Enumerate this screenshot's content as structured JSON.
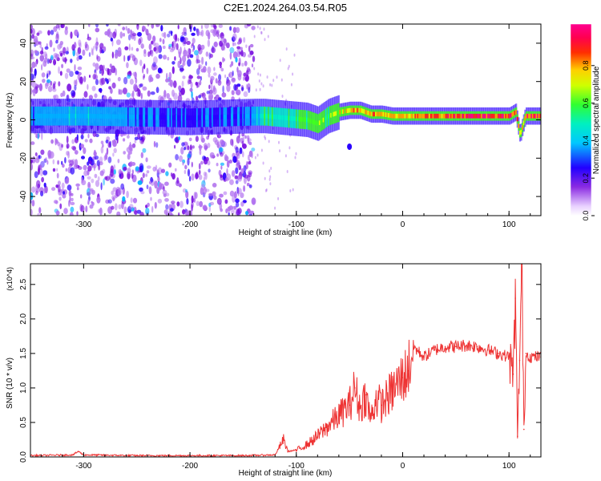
{
  "title": "C2E1.2024.264.03.54.R05",
  "colorbar": {
    "label": "Normalized spectral amplitude",
    "ticks": [
      "0.0",
      "0.2",
      "0.4",
      "0.6",
      "0.8"
    ]
  },
  "chart_data": [
    {
      "type": "heatmap",
      "xlabel": "Height of straight line (km)",
      "ylabel": "Frequency (Hz)",
      "xlim": [
        -350,
        130
      ],
      "ylim": [
        -50,
        50
      ],
      "xticks": [
        "-300",
        "-200",
        "-100",
        "0",
        "100"
      ],
      "yticks": [
        "40",
        "20",
        "0",
        "-20",
        "-40"
      ],
      "zlim": [
        0,
        1
      ],
      "colormap": "rainbow (violet → blue → cyan → green → yellow → red → magenta)",
      "noise_region_x": [
        -350,
        -140
      ],
      "ridge": {
        "description": "Signal ridge near 0–5 Hz, strongest for heights above -60 km",
        "x": [
          -350,
          -300,
          -250,
          -200,
          -140,
          -130,
          -110,
          -90,
          -80,
          -70,
          -60,
          -50,
          -40,
          -30,
          -20,
          -10,
          0,
          20,
          40,
          60,
          80,
          100,
          106,
          110,
          115,
          130
        ],
        "freq": [
          2,
          2,
          1.5,
          1,
          2,
          2,
          1,
          0,
          -2,
          2,
          4,
          5,
          5,
          3,
          3,
          2,
          2,
          2,
          2,
          2,
          2,
          2,
          4,
          -8,
          2,
          2
        ],
        "amplitude": [
          0.35,
          0.4,
          0.35,
          0.3,
          0.35,
          0.5,
          0.5,
          0.55,
          0.6,
          0.6,
          0.7,
          0.75,
          0.8,
          0.8,
          0.75,
          0.75,
          0.8,
          0.8,
          0.85,
          0.9,
          0.9,
          0.9,
          0.8,
          0.7,
          0.85,
          0.85
        ]
      }
    },
    {
      "type": "line",
      "xlabel": "Height of straight line (km)",
      "ylabel": "SNR (10 * v/v)",
      "y_multiplier": "(x10^4)",
      "xlim": [
        -350,
        130
      ],
      "ylim": [
        0,
        2.8
      ],
      "xticks": [
        "-300",
        "-200",
        "-100",
        "0",
        "100"
      ],
      "yticks": [
        "0.0",
        "0.5",
        "1.0",
        "1.5",
        "2.0",
        "2.5"
      ],
      "color": "#ee3333",
      "series": [
        {
          "x": [
            -350,
            -310,
            -305,
            -300,
            -250,
            -200,
            -150,
            -120,
            -112,
            -108,
            -100,
            -90,
            -80,
            -70,
            -60,
            -50,
            -45,
            -40,
            -35,
            -30,
            -25,
            -20,
            -10,
            0,
            5,
            10,
            20,
            30,
            40,
            50,
            60,
            70,
            80,
            90,
            100,
            104,
            106,
            108,
            110,
            112,
            114,
            116,
            120,
            130
          ],
          "y": [
            0.02,
            0.03,
            0.08,
            0.03,
            0.02,
            0.02,
            0.02,
            0.03,
            0.25,
            0.08,
            0.1,
            0.18,
            0.3,
            0.45,
            0.6,
            0.75,
            1.0,
            0.7,
            0.9,
            0.55,
            0.85,
            0.75,
            0.95,
            1.15,
            1.25,
            1.6,
            1.45,
            1.55,
            1.6,
            1.6,
            1.62,
            1.6,
            1.55,
            1.5,
            1.45,
            1.2,
            2.3,
            0.3,
            1.4,
            2.8,
            0.4,
            1.5,
            1.45,
            1.45
          ]
        }
      ]
    }
  ]
}
